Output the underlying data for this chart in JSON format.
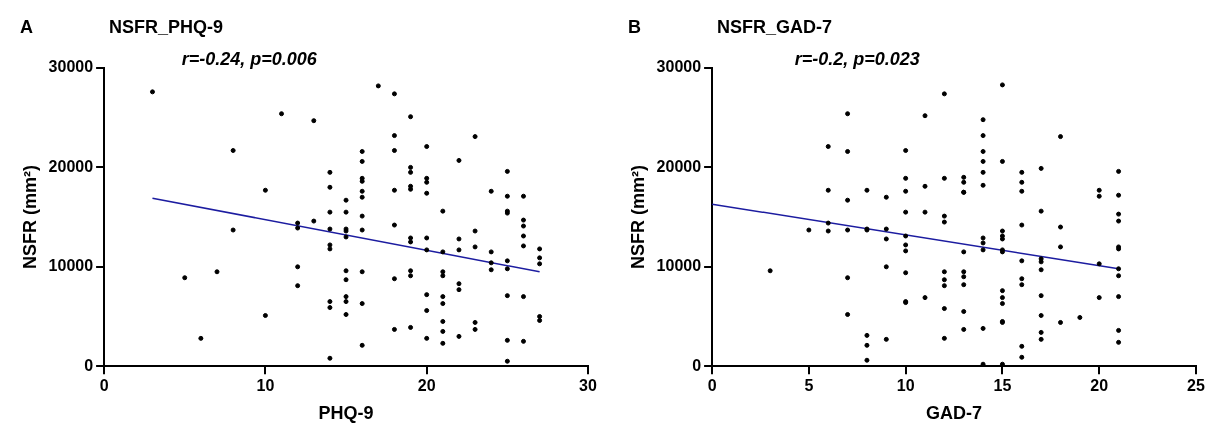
{
  "chart_data": [
    {
      "type": "scatter",
      "title": "NSFR_PHQ-9",
      "xlabel": "PHQ-9",
      "ylabel": "NSFR (mm²)",
      "annotations": [
        "A",
        "r=-0.24, p=0.006"
      ],
      "xlim": [
        0,
        30
      ],
      "xticks": [
        0,
        10,
        20,
        30
      ],
      "ylim": [
        0,
        30000
      ],
      "yticks": [
        0,
        10000,
        20000,
        30000
      ],
      "grid": false,
      "marker": "circle",
      "series": [
        {
          "color": "#000000",
          "x": [
            3,
            5,
            6,
            7,
            8,
            8,
            10,
            10,
            11,
            12,
            12,
            12,
            12,
            13,
            13,
            14,
            14,
            14,
            14,
            14,
            14,
            14,
            14,
            14,
            15,
            15,
            15,
            15,
            15,
            15,
            15,
            15,
            15,
            15,
            16,
            16,
            16,
            16,
            16,
            16,
            16,
            16,
            16,
            16,
            16,
            17,
            18,
            18,
            18,
            18,
            18,
            18,
            18,
            19,
            19,
            19,
            19,
            19,
            19,
            19,
            19,
            19,
            19,
            20,
            20,
            20,
            20,
            20,
            20,
            20,
            20,
            20,
            21,
            21,
            21,
            21,
            21,
            21,
            21,
            21,
            21,
            22,
            22,
            22,
            22,
            22,
            22,
            23,
            23,
            23,
            23,
            23,
            24,
            24,
            24,
            24,
            25,
            25,
            25,
            25,
            25,
            25,
            25,
            25,
            25,
            26,
            26,
            26,
            26,
            26,
            26,
            26,
            27,
            27,
            27,
            27,
            27
          ],
          "values": [
            27600,
            8900,
            2800,
            9500,
            21700,
            13700,
            17700,
            5100,
            25400,
            14400,
            13900,
            10000,
            8100,
            24700,
            14600,
            19500,
            18000,
            15500,
            13800,
            12200,
            11800,
            6500,
            5900,
            800,
            16700,
            15500,
            13800,
            13600,
            13000,
            9600,
            8700,
            7000,
            6500,
            5200,
            21600,
            20600,
            18900,
            18600,
            17600,
            17000,
            15100,
            13700,
            9500,
            6300,
            2100,
            28200,
            27400,
            23200,
            21700,
            17700,
            14200,
            8800,
            3700,
            25100,
            20000,
            19500,
            18100,
            17800,
            12900,
            12500,
            9600,
            9100,
            3900,
            22100,
            18900,
            18500,
            17400,
            12900,
            11700,
            7200,
            5600,
            2800,
            15600,
            11500,
            9500,
            9100,
            7000,
            6300,
            4500,
            3500,
            2300,
            20700,
            12800,
            11700,
            8300,
            7700,
            3000,
            23100,
            13600,
            12000,
            4400,
            3700,
            17600,
            11500,
            10400,
            9700,
            19600,
            17100,
            15600,
            15400,
            10600,
            9800,
            7100,
            2600,
            500,
            17100,
            14700,
            14100,
            13100,
            12100,
            7000,
            2500,
            11800,
            10900,
            10300,
            5000,
            4600
          ]
        },
        {
          "type": "line",
          "marker": "none",
          "color": "#1c1ca0",
          "x": [
            3,
            27
          ],
          "values": [
            16900,
            9500
          ]
        }
      ]
    },
    {
      "type": "scatter",
      "title": "NSFR_GAD-7",
      "xlabel": "GAD-7",
      "ylabel": "NSFR (mm²)",
      "annotations": [
        "B",
        "r=-0.2, p=0.023"
      ],
      "xlim": [
        0,
        25
      ],
      "xticks": [
        0,
        5,
        10,
        15,
        20,
        25
      ],
      "ylim": [
        0,
        30000
      ],
      "yticks": [
        0,
        10000,
        20000,
        30000
      ],
      "grid": false,
      "marker": "circle",
      "series": [
        {
          "color": "#000000",
          "x": [
            3,
            5,
            6,
            6,
            6,
            6,
            7,
            7,
            7,
            7,
            7,
            7,
            8,
            8,
            8,
            8,
            8,
            8,
            9,
            9,
            9,
            9,
            9,
            10,
            10,
            10,
            10,
            10,
            10,
            10,
            10,
            10,
            10,
            11,
            11,
            11,
            11,
            12,
            12,
            12,
            12,
            12,
            12,
            12,
            12,
            12,
            13,
            13,
            13,
            13,
            13,
            13,
            13,
            13,
            13,
            13,
            14,
            14,
            14,
            14,
            14,
            14,
            14,
            14,
            14,
            14,
            14,
            15,
            15,
            15,
            15,
            15,
            15,
            15,
            15,
            15,
            15,
            15,
            15,
            15,
            16,
            16,
            16,
            16,
            16,
            16,
            16,
            16,
            16,
            17,
            17,
            17,
            17,
            17,
            17,
            17,
            17,
            17,
            18,
            18,
            18,
            18,
            19,
            20,
            20,
            20,
            20,
            21,
            21,
            21,
            21,
            21,
            21,
            21,
            21,
            21,
            21,
            21
          ],
          "values": [
            9600,
            13700,
            22100,
            17700,
            14400,
            13600,
            25400,
            21600,
            16700,
            13700,
            8900,
            5200,
            17700,
            13800,
            13700,
            3100,
            2100,
            600,
            17000,
            13800,
            12800,
            10000,
            2700,
            21700,
            18900,
            17600,
            15500,
            13100,
            12200,
            11600,
            9400,
            6500,
            6400,
            25200,
            18100,
            15500,
            6900,
            27400,
            18900,
            15100,
            14500,
            9500,
            8700,
            8100,
            5800,
            2800,
            19000,
            18500,
            17500,
            17500,
            11500,
            9500,
            9000,
            8200,
            5500,
            3700,
            24800,
            23200,
            21600,
            20600,
            19500,
            18200,
            12900,
            12400,
            11700,
            3800,
            200,
            28300,
            20600,
            13600,
            13100,
            12800,
            11700,
            11500,
            7600,
            6900,
            6300,
            4500,
            4400,
            200,
            19500,
            18500,
            17600,
            14200,
            10600,
            8800,
            8200,
            2000,
            900,
            19900,
            15600,
            10800,
            10500,
            9700,
            7100,
            5100,
            3400,
            2700,
            23100,
            14000,
            12000,
            4400,
            4900,
            17700,
            17100,
            10300,
            6900,
            19600,
            17200,
            15300,
            14600,
            12000,
            11800,
            9800,
            9100,
            7000,
            3600,
            2400
          ]
        },
        {
          "type": "line",
          "marker": "none",
          "color": "#1c1ca0",
          "x": [
            0,
            21
          ],
          "values": [
            16300,
            9800
          ]
        }
      ]
    }
  ]
}
